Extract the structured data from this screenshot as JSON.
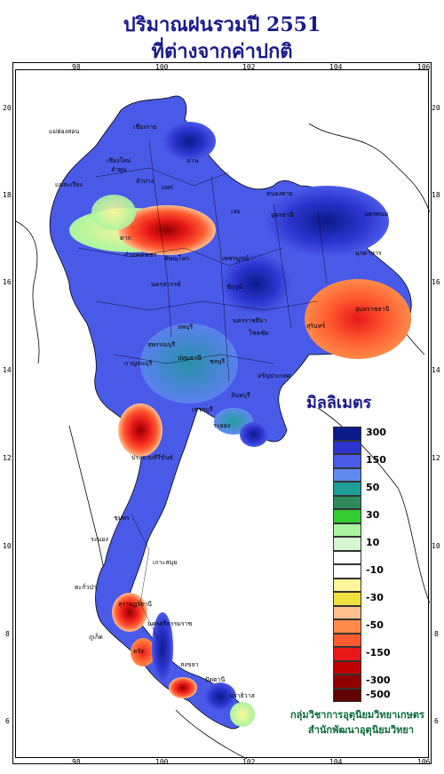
{
  "title": {
    "line1": "ปริมาณฝนรวมปี 2551",
    "line2": "ที่ต่างจากค่าปกติ"
  },
  "axes": {
    "longitudes": [
      "98",
      "100",
      "102",
      "104",
      "106"
    ],
    "latitudes": [
      "20",
      "18",
      "16",
      "14",
      "12",
      "10",
      "8",
      "6"
    ]
  },
  "legend": {
    "title": "มิลลิเมตร",
    "bins": [
      {
        "label": "300",
        "color": "#0b1a8a"
      },
      {
        "label": "",
        "color": "#2c34cf"
      },
      {
        "label": "150",
        "color": "#4a5ae8"
      },
      {
        "label": "",
        "color": "#5f8af0"
      },
      {
        "label": "50",
        "color": "#1f9e98"
      },
      {
        "label": "",
        "color": "#2f8a5a"
      },
      {
        "label": "30",
        "color": "#33cc33"
      },
      {
        "label": "",
        "color": "#a9f5a0"
      },
      {
        "label": "10",
        "color": "#d6f7d2"
      },
      {
        "label": "",
        "color": "#ffffff"
      },
      {
        "label": "-10",
        "color": "#ffffff"
      },
      {
        "label": "",
        "color": "#fff59a"
      },
      {
        "label": "-30",
        "color": "#f0e040"
      },
      {
        "label": "",
        "color": "#ffc090"
      },
      {
        "label": "-50",
        "color": "#ff8a4a"
      },
      {
        "label": "",
        "color": "#ff5a30"
      },
      {
        "label": "-150",
        "color": "#e81818"
      },
      {
        "label": "",
        "color": "#c00000"
      },
      {
        "label": "-300",
        "color": "#900000"
      },
      {
        "label": "-500",
        "color": "#600000"
      }
    ]
  },
  "credit": {
    "line1": "กลุ่มวิชาการอุตุนิยมวิทยาเกษตร",
    "line2": "สำนักพัฒนาอุตุนิยมวิทยา"
  },
  "places": [
    "แม่ฮ่องสอน",
    "เชียงราย",
    "เชียงใหม่",
    "ลำพูน",
    "น่าน",
    "แพร่",
    "ลำปาง",
    "แม่สะเรียง",
    "หนองคาย",
    "อุดรธานี",
    "นครพนม",
    "เลย",
    "ตาก",
    "มุกดาหาร",
    "กำแพงเพชร",
    "พิษณุโลก",
    "เพชรบูรณ์",
    "นครสวรรค์",
    "อุบลราชธานี",
    "ชัยภูมิ",
    "ลพบุรี",
    "นครราชสีมา",
    "สุรินทร์",
    "สุพรรณบุรี",
    "กาญจนบุรี",
    "ปทุมธานี",
    "โชคชัย",
    "อรัญประเทศ",
    "ชลบุรี",
    "ระยอง",
    "จันทบุรี",
    "เพชรบุรี",
    "ประจวบคีรีขันธ์",
    "ชุมพร",
    "ระนอง",
    "เกาะสมุย",
    "ตะกั่วป่า",
    "สุราษฎร์ธานี",
    "นครศรีธรรมราช",
    "ภูเก็ต",
    "ตรัง",
    "สงขลา",
    "ปัตตานี",
    "นราธิวาส"
  ]
}
